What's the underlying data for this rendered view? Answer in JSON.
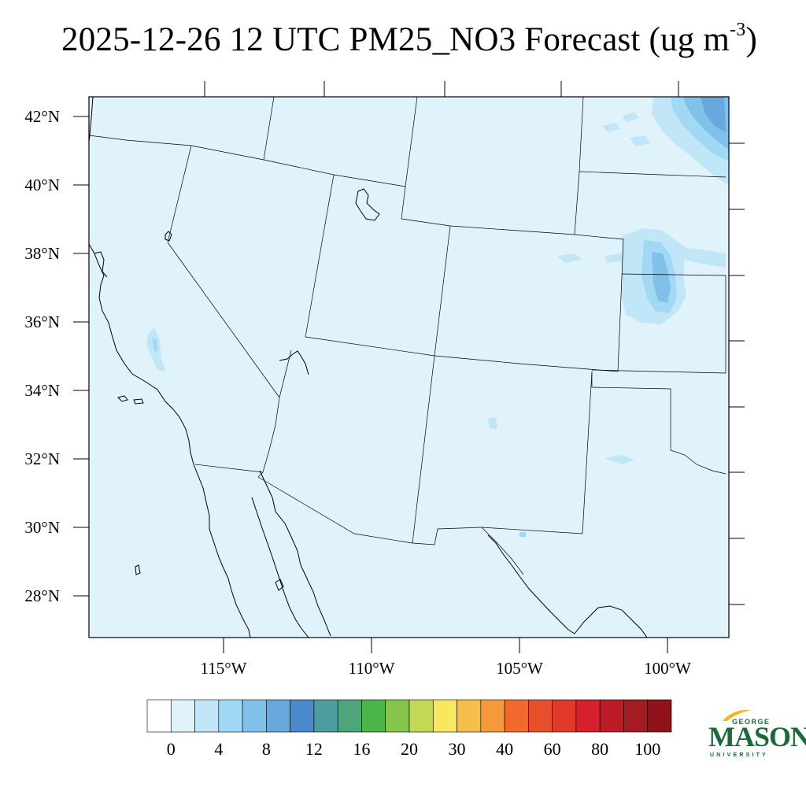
{
  "title": {
    "main": "2025-12-26 12 UTC PM25_NO3 Forecast (ug m",
    "sup": "-3",
    "close": ")"
  },
  "map": {
    "background_color": "#e0f3fb",
    "lat_labels": [
      "42°N",
      "40°N",
      "38°N",
      "36°N",
      "34°N",
      "32°N",
      "30°N",
      "28°N"
    ],
    "lon_labels": [
      "115°W",
      "110°W",
      "105°W",
      "100°W"
    ]
  },
  "colorbar": {
    "colors": [
      "#ffffff",
      "#e0f3fb",
      "#c0e6f7",
      "#a1d8f4",
      "#81c0e8",
      "#68a8dd",
      "#4a89cb",
      "#4c9da0",
      "#4ea57a",
      "#4bb54a",
      "#86c44b",
      "#c2d956",
      "#f9e85e",
      "#f6bf4a",
      "#f59a3a",
      "#f16a2b",
      "#e7502b",
      "#e03b2a",
      "#d7202e",
      "#bd1b26",
      "#a61a22",
      "#8f1319"
    ],
    "labels": [
      "0",
      "4",
      "8",
      "12",
      "16",
      "20",
      "30",
      "40",
      "60",
      "80",
      "100"
    ]
  },
  "logo": {
    "line1": "GEORGE",
    "line2": "MASON",
    "line3": "UNIVERSITY",
    "color": "#1a6b3a",
    "accent": "#f2b61a"
  }
}
